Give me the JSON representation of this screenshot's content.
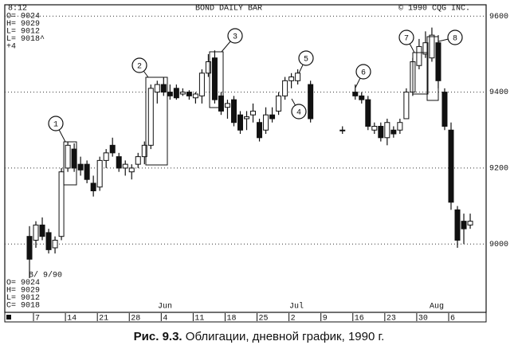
{
  "chart_data": {
    "type": "candlestick",
    "title": "BOND DAILY BAR",
    "timestamp": "8:12",
    "copyright": "© 1990 CQG INC.",
    "info_top": [
      "O= 9024",
      "H= 9029",
      "L= 9012",
      "L= 9018^",
      "+4"
    ],
    "info_bottom": [
      "B/ 9/90",
      "O=  9024",
      "H=  9029",
      "L=  9012",
      "C=  9018"
    ],
    "months": [
      "Jun",
      "Jul",
      "Aug"
    ],
    "annotations": [
      "1",
      "2",
      "3",
      "4",
      "5",
      "6",
      "7",
      "8"
    ],
    "categories": [
      null,
      "7",
      null,
      null,
      null,
      null,
      "14",
      null,
      null,
      null,
      null,
      "21",
      null,
      null,
      null,
      null,
      "28",
      null,
      null,
      null,
      null,
      "4",
      null,
      null,
      null,
      null,
      "11",
      null,
      null,
      null,
      null,
      "18",
      null,
      null,
      null,
      null,
      "25",
      null,
      null,
      null,
      null,
      "2",
      null,
      null,
      null,
      null,
      "9",
      null,
      null,
      null,
      null,
      "16",
      null,
      null,
      null,
      null,
      "23",
      null,
      null,
      null,
      null,
      "30",
      null,
      null,
      null,
      null,
      "6",
      null,
      null,
      null
    ],
    "open": [
      9020,
      9010,
      9050,
      9030,
      8990,
      9020,
      9200,
      9250,
      9210,
      9210,
      9160,
      9150,
      9220,
      9260,
      9230,
      9200,
      9190,
      9210,
      9230,
      9260,
      9400,
      9420,
      9400,
      9410,
      9395,
      9400,
      9385,
      9390,
      9450,
      9490,
      9390,
      9360,
      9380,
      9340,
      9330,
      9340,
      9320,
      9300,
      9340,
      9350,
      9390,
      9430,
      9430,
      null,
      9420,
      null,
      null,
      null,
      null,
      9300,
      null,
      9400,
      9390,
      9380,
      9300,
      9310,
      9280,
      9300,
      9300,
      9330,
      9400,
      9470,
      9500,
      9490,
      9530,
      9400,
      9300,
      9090,
      9060,
      9050
    ],
    "high": [
      9047,
      9060,
      9070,
      9040,
      9020,
      9200,
      9270,
      9265,
      9230,
      9220,
      9180,
      9230,
      9250,
      9280,
      9240,
      9220,
      9210,
      9240,
      9270,
      9420,
      9430,
      9440,
      9420,
      9420,
      9410,
      9405,
      9400,
      9460,
      9500,
      9510,
      9400,
      9380,
      9390,
      9350,
      9350,
      9370,
      9330,
      9360,
      9360,
      9400,
      9440,
      9450,
      9460,
      null,
      9430,
      null,
      null,
      null,
      null,
      9310,
      null,
      9420,
      9400,
      9390,
      9320,
      9320,
      9330,
      9310,
      9330,
      9410,
      9490,
      9540,
      9560,
      9570,
      9550,
      9410,
      9320,
      9100,
      9080,
      9080
    ],
    "low": [
      8910,
      8990,
      9010,
      8975,
      8975,
      9010,
      9190,
      9190,
      9180,
      9160,
      9125,
      9140,
      9200,
      9230,
      9190,
      9180,
      9170,
      9200,
      9210,
      9250,
      9370,
      9390,
      9380,
      9380,
      9390,
      9380,
      9370,
      9370,
      9440,
      9370,
      9340,
      9330,
      9310,
      9290,
      9300,
      9320,
      9270,
      9290,
      9320,
      9340,
      9380,
      9410,
      9420,
      null,
      9320,
      null,
      null,
      null,
      null,
      9290,
      null,
      9380,
      9370,
      9300,
      9290,
      9270,
      9260,
      9280,
      9290,
      9330,
      9390,
      9460,
      9490,
      9480,
      9410,
      9300,
      9090,
      8990,
      9000,
      9040
    ],
    "close": [
      8960,
      9050,
      9020,
      8985,
      9010,
      9190,
      9260,
      9200,
      9195,
      9170,
      9140,
      9220,
      9240,
      9240,
      9200,
      9210,
      9200,
      9230,
      9260,
      9410,
      9420,
      9400,
      9390,
      9385,
      9400,
      9390,
      9395,
      9450,
      9480,
      9380,
      9350,
      9370,
      9320,
      9300,
      9335,
      9350,
      9280,
      9340,
      9330,
      9390,
      9430,
      9440,
      9450,
      null,
      9330,
      null,
      null,
      null,
      null,
      9300,
      null,
      9390,
      9380,
      9310,
      9310,
      9280,
      9320,
      9290,
      9320,
      9400,
      9480,
      9520,
      9530,
      9550,
      9430,
      9310,
      9110,
      9010,
      9040,
      9060
    ],
    "ylim": [
      8820,
      9630
    ],
    "yticks": [
      9000,
      9200,
      9400,
      9600
    ],
    "grid": true,
    "color": "#111111"
  },
  "caption": {
    "label": "Рис. 9.3.",
    "text": "Облигации, дневной график, 1990 г."
  }
}
